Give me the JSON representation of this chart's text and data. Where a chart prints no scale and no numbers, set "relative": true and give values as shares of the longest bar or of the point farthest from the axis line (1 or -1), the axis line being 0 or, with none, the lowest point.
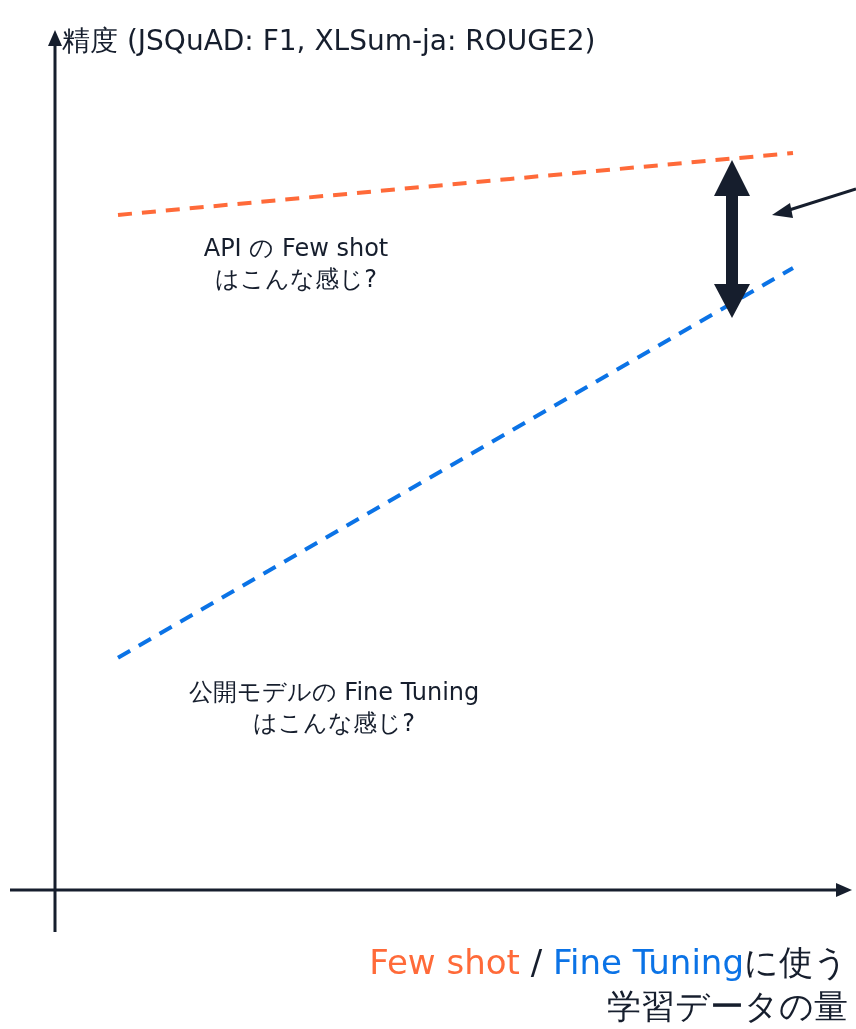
{
  "chart_data": {
    "type": "line",
    "relative": true,
    "line_style": "dashed",
    "marker": "none",
    "ylabel": "精度 (JSQuAD: F1, XLSum-ja: ROUGE2)",
    "xlabel": "に使う学習データの量",
    "categories": [
      null,
      null
    ],
    "series": [
      {
        "name": "Few shot",
        "color": "#ff6a39",
        "values": [
          0.916,
          1
        ]
      },
      {
        "name": "Fine Tuning",
        "color": "#0b73e6",
        "values": [
          0.315,
          0.844
        ]
      }
    ],
    "annotations": [
      "API の Few shot\nはこんな感じ?",
      "公開モデルの Fine Tuning\nはこんな感じ?",
      "/"
    ]
  }
}
